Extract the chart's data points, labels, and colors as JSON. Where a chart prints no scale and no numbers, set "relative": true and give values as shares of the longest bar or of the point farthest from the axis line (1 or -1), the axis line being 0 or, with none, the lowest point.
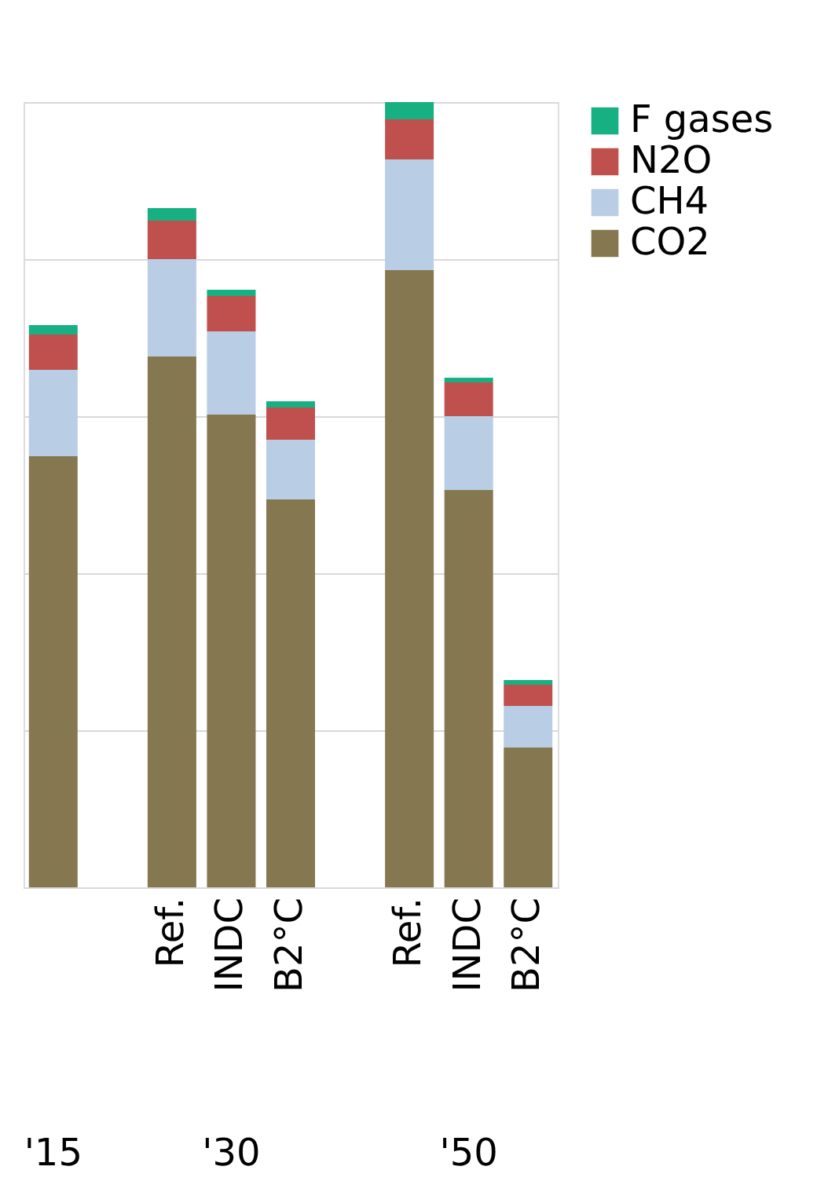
{
  "chart_data": {
    "type": "bar",
    "stacked": true,
    "relative": true,
    "grid": "y",
    "legend": "right",
    "categories": [
      null,
      null,
      "Ref.",
      "INDC",
      "B2°C",
      null,
      "Ref.",
      "INDC",
      "B2°C"
    ],
    "series": [
      {
        "name": "CO2",
        "color": "#857850",
        "values": [
          0.549,
          null,
          0.676,
          0.602,
          0.494,
          null,
          0.786,
          0.506,
          0.178
        ]
      },
      {
        "name": "CH4",
        "color": "#b9cde5",
        "values": [
          0.11,
          null,
          0.124,
          0.106,
          0.076,
          null,
          0.141,
          0.094,
          0.053
        ]
      },
      {
        "name": "N2O",
        "color": "#c0504d",
        "values": [
          0.045,
          null,
          0.049,
          0.045,
          0.041,
          null,
          0.051,
          0.043,
          0.027
        ]
      },
      {
        "name": "F gases",
        "color": "#17b082",
        "values": [
          0.012,
          null,
          0.016,
          0.008,
          0.008,
          null,
          0.022,
          0.006,
          0.006
        ]
      }
    ],
    "annotations": [
      "'15",
      "'30",
      "'50"
    ]
  }
}
